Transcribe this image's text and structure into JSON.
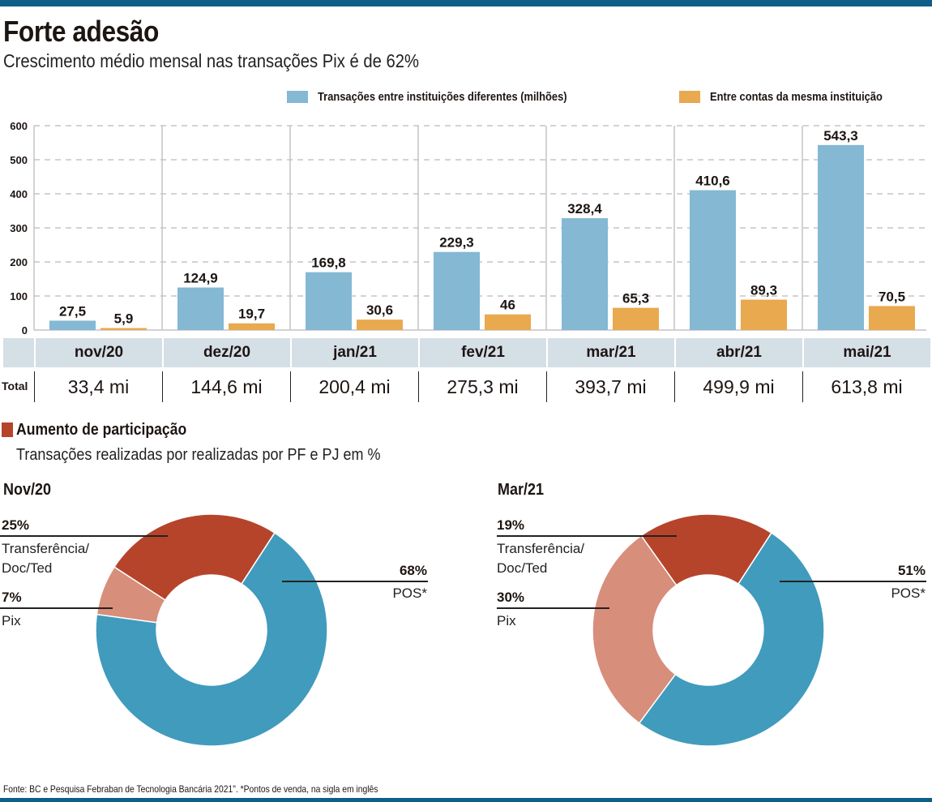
{
  "header": {
    "title": "Forte adesão",
    "subtitle": "Crescimento médio mensal nas transações Pix é de 62%"
  },
  "colors": {
    "top_bar": "#0f5e87",
    "series_blue": "#84b8d3",
    "series_orange": "#e8a94f",
    "donut_pos": "#409bbd",
    "donut_transfer": "#b6442b",
    "donut_pix": "#d78e7b",
    "months_band": "#d5dfe6"
  },
  "chart_data": [
    {
      "type": "bar",
      "title": "Forte adesão",
      "subtitle": "Crescimento médio mensal nas transações Pix é de 62%",
      "categories": [
        "nov/20",
        "dez/20",
        "jan/21",
        "fev/21",
        "mar/21",
        "abr/21",
        "mai/21"
      ],
      "series": [
        {
          "name": "Transações entre instituições diferentes (milhões)",
          "values": [
            27.5,
            124.9,
            169.8,
            229.3,
            328.4,
            410.6,
            543.3
          ],
          "labels": [
            "27,5",
            "124,9",
            "169,8",
            "229,3",
            "328,4",
            "410,6",
            "543,3"
          ]
        },
        {
          "name": "Entre contas da mesma instituição",
          "values": [
            5.9,
            19.7,
            30.6,
            46,
            65.3,
            89.3,
            70.5
          ],
          "labels": [
            "5,9",
            "19,7",
            "30,6",
            "46",
            "65,3",
            "89,3",
            "70,5"
          ]
        }
      ],
      "yticks": [
        "0",
        "100",
        "200",
        "300",
        "400",
        "500",
        "600"
      ],
      "ylim": [
        0,
        600
      ],
      "grid": true,
      "legend": "top-right",
      "xlabel": "",
      "ylabel": "",
      "totals_label": "Total",
      "totals": [
        "33,4 mi",
        "144,6 mi",
        "200,4 mi",
        "275,3 mi",
        "393,7 mi",
        "499,9 mi",
        "613,8 mi"
      ]
    },
    {
      "type": "pie",
      "title": "Nov/20",
      "slices": [
        {
          "name": "POS*",
          "value": 68,
          "label": "68%"
        },
        {
          "name": "Pix",
          "value": 7,
          "label": "7%"
        },
        {
          "name": "Transferência/ Doc/Ted",
          "value": 25,
          "label": "25%"
        }
      ]
    },
    {
      "type": "pie",
      "title": "Mar/21",
      "slices": [
        {
          "name": "POS*",
          "value": 51,
          "label": "51%"
        },
        {
          "name": "Pix",
          "value": 30,
          "label": "30%"
        },
        {
          "name": "Transferência/ Doc/Ted",
          "value": 19,
          "label": "19%"
        }
      ]
    }
  ],
  "section2": {
    "title": "Aumento de participação",
    "subtitle": "Transações realizadas por realizadas por PF e PJ em %",
    "donut1": {
      "title": "Nov/20",
      "transfer_pct": "25%",
      "transfer_l1": "Transferência/",
      "transfer_l2": "Doc/Ted",
      "pix_pct": "7%",
      "pix_label": "Pix",
      "pos_pct": "68%",
      "pos_label": "POS*"
    },
    "donut2": {
      "title": "Mar/21",
      "transfer_pct": "19%",
      "transfer_l1": "Transferência/",
      "transfer_l2": "Doc/Ted",
      "pix_pct": "30%",
      "pix_label": "Pix",
      "pos_pct": "51%",
      "pos_label": "POS*"
    }
  },
  "footer": {
    "source": "Fonte: BC e Pesquisa Febraban de Tecnologia Bancária 2021\". *Pontos de venda, na sigla em inglês"
  }
}
